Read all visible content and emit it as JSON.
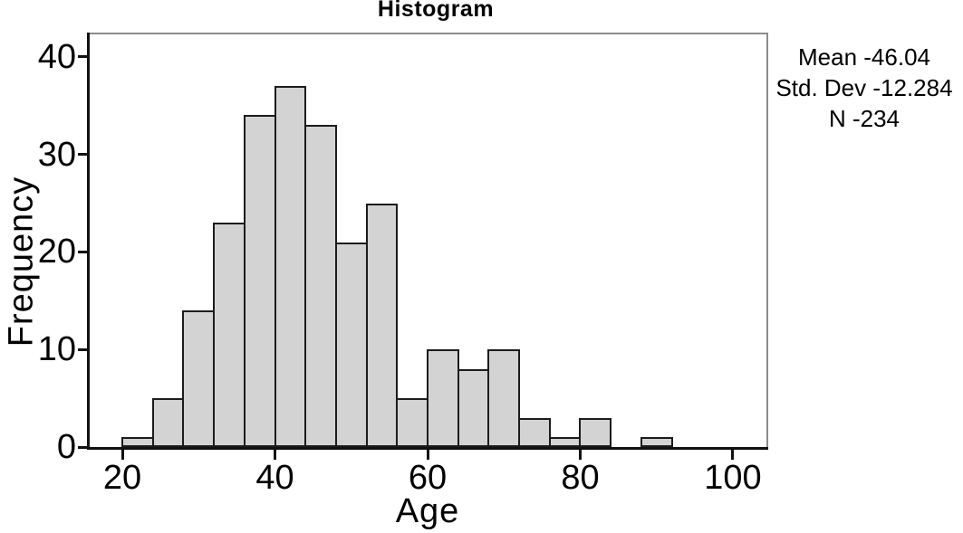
{
  "chart_data": {
    "type": "bar",
    "subtype": "histogram",
    "title": "Histogram",
    "xlabel": "Age",
    "ylabel": "Frequency",
    "bin_width": 4,
    "bin_edges": [
      20,
      24,
      28,
      32,
      36,
      40,
      44,
      48,
      52,
      56,
      60,
      64,
      68,
      72,
      76,
      80,
      84,
      88
    ],
    "values": [
      1,
      5,
      14,
      23,
      34,
      37,
      33,
      21,
      25,
      5,
      10,
      8,
      10,
      3,
      1,
      3,
      0,
      1
    ],
    "x_ticks": [
      20,
      40,
      60,
      80,
      100
    ],
    "y_ticks": [
      0,
      10,
      20,
      30,
      40
    ],
    "xlim": [
      15.6,
      104.4
    ],
    "ylim": [
      0,
      42.3
    ],
    "grid": false,
    "legend_position": "none",
    "annotations": [
      "Mean -46.04",
      "Std. Dev -12.284",
      "N -234"
    ],
    "colors": {
      "bar_fill": "#d3d3d3",
      "bar_border": "#1c1c1c",
      "axis": "#111111",
      "frame": "#8c8c8c",
      "text": "#000000",
      "background": "#ffffff"
    }
  }
}
